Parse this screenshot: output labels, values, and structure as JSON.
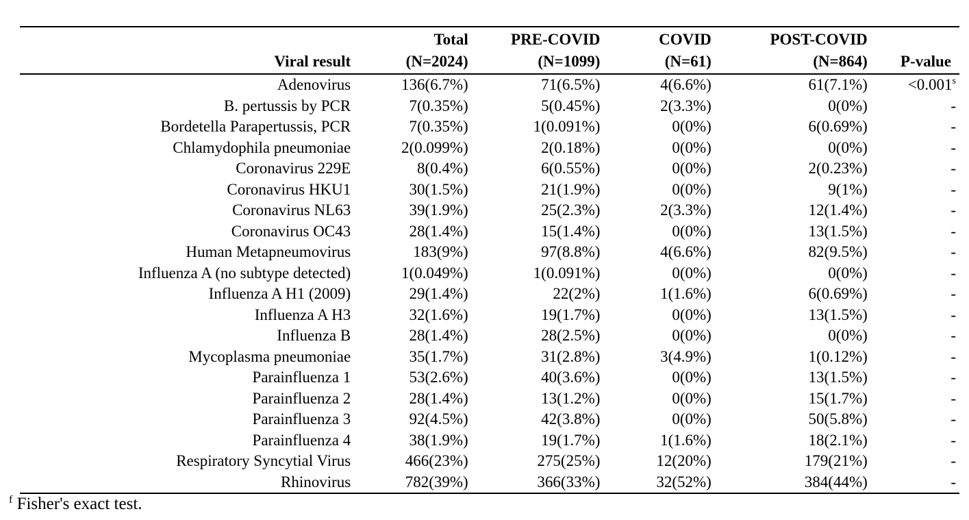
{
  "table": {
    "headers": [
      {
        "line1": "",
        "line2": "Viral result"
      },
      {
        "line1": "Total",
        "line2": "(N=2024)"
      },
      {
        "line1": "PRE-COVID",
        "line2": "(N=1099)"
      },
      {
        "line1": "COVID",
        "line2": "(N=61)"
      },
      {
        "line1": "POST-COVID",
        "line2": "(N=864)"
      },
      {
        "line1": "",
        "line2": "P-value"
      }
    ],
    "rows": [
      [
        "Adenovirus",
        "136(6.7%)",
        "71(6.5%)",
        "4(6.6%)",
        "61(7.1%)",
        "<0.001"
      ],
      [
        "B. pertussis by PCR",
        "7(0.35%)",
        "5(0.45%)",
        "2(3.3%)",
        "0(0%)",
        "-"
      ],
      [
        "Bordetella Parapertussis, PCR",
        "7(0.35%)",
        "1(0.091%)",
        "0(0%)",
        "6(0.69%)",
        "-"
      ],
      [
        "Chlamydophila pneumoniae",
        "2(0.099%)",
        "2(0.18%)",
        "0(0%)",
        "0(0%)",
        "-"
      ],
      [
        "Coronavirus 229E",
        "8(0.4%)",
        "6(0.55%)",
        "0(0%)",
        "2(0.23%)",
        "-"
      ],
      [
        "Coronavirus HKU1",
        "30(1.5%)",
        "21(1.9%)",
        "0(0%)",
        "9(1%)",
        "-"
      ],
      [
        "Coronavirus NL63",
        "39(1.9%)",
        "25(2.3%)",
        "2(3.3%)",
        "12(1.4%)",
        "-"
      ],
      [
        "Coronavirus OC43",
        "28(1.4%)",
        "15(1.4%)",
        "0(0%)",
        "13(1.5%)",
        "-"
      ],
      [
        "Human Metapneumovirus",
        "183(9%)",
        "97(8.8%)",
        "4(6.6%)",
        "82(9.5%)",
        "-"
      ],
      [
        "Influenza A (no subtype detected)",
        "1(0.049%)",
        "1(0.091%)",
        "0(0%)",
        "0(0%)",
        "-"
      ],
      [
        "Influenza A H1 (2009)",
        "29(1.4%)",
        "22(2%)",
        "1(1.6%)",
        "6(0.69%)",
        "-"
      ],
      [
        "Influenza A H3",
        "32(1.6%)",
        "19(1.7%)",
        "0(0%)",
        "13(1.5%)",
        "-"
      ],
      [
        "Influenza B",
        "28(1.4%)",
        "28(2.5%)",
        "0(0%)",
        "0(0%)",
        "-"
      ],
      [
        "Mycoplasma pneumoniae",
        "35(1.7%)",
        "31(2.8%)",
        "3(4.9%)",
        "1(0.12%)",
        "-"
      ],
      [
        "Parainfluenza 1",
        "53(2.6%)",
        "40(3.6%)",
        "0(0%)",
        "13(1.5%)",
        "-"
      ],
      [
        "Parainfluenza 2",
        "28(1.4%)",
        "13(1.2%)",
        "0(0%)",
        "15(1.7%)",
        "-"
      ],
      [
        "Parainfluenza 3",
        "92(4.5%)",
        "42(3.8%)",
        "0(0%)",
        "50(5.8%)",
        "-"
      ],
      [
        "Parainfluenza 4",
        "38(1.9%)",
        "19(1.7%)",
        "1(1.6%)",
        "18(2.1%)",
        "-"
      ],
      [
        "Respiratory Syncytial Virus",
        "466(23%)",
        "275(25%)",
        "12(20%)",
        "179(21%)",
        "-"
      ],
      [
        "Rhinovirus",
        "782(39%)",
        "366(33%)",
        "32(52%)",
        "384(44%)",
        "-"
      ]
    ],
    "first_row_pvalue_superscript": "s"
  },
  "footnote": {
    "marker": "f",
    "text": "Fisher's exact test."
  }
}
